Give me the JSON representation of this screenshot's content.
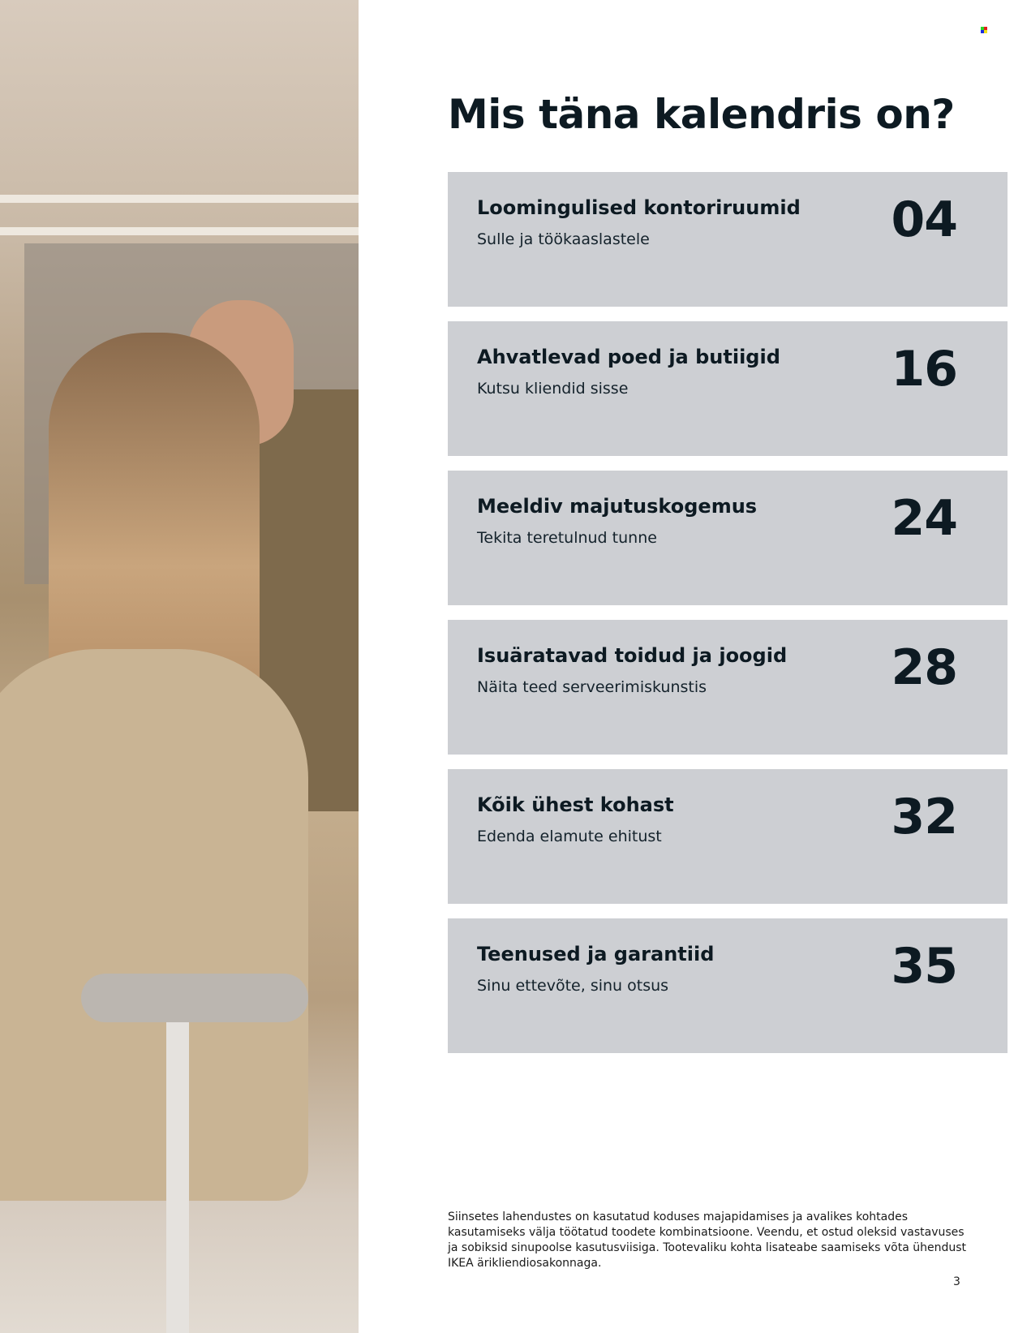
{
  "title": "Mis täna kalendris on?",
  "sections": [
    {
      "title": "Loomingulised kontoriruumid",
      "subtitle": "Sulle ja töökaaslastele",
      "page": "04"
    },
    {
      "title": "Ahvatlevad poed ja butiigid",
      "subtitle": "Kutsu kliendid sisse",
      "page": "16"
    },
    {
      "title": "Meeldiv majutuskogemus",
      "subtitle": "Tekita teretulnud tunne",
      "page": "24"
    },
    {
      "title": "Isuäratavad toidud ja joogid",
      "subtitle": "Näita teed serveerimiskunstis",
      "page": "28"
    },
    {
      "title": "Kõik ühest kohast",
      "subtitle": "Edenda elamute ehitust",
      "page": "32"
    },
    {
      "title": "Teenused ja garantiid",
      "subtitle": "Sinu ettevõte, sinu otsus",
      "page": "35"
    }
  ],
  "footnote": "Siinsetes lahendustes on kasutatud koduses majapidamises ja avalikes kohtades kasutamiseks välja töötatud toodete kombinatsioone. Veendu, et ostud oleksid vastavuses ja sobiksid sinupoolse kasutusviisiga. Tootevaliku kohta lisateabe saamiseks võta ühendust IKEA ärikliendiosakonnaga.",
  "page_number": "3",
  "colors": {
    "card_bg": "#cdcfd3",
    "text": "#0d1a22"
  }
}
